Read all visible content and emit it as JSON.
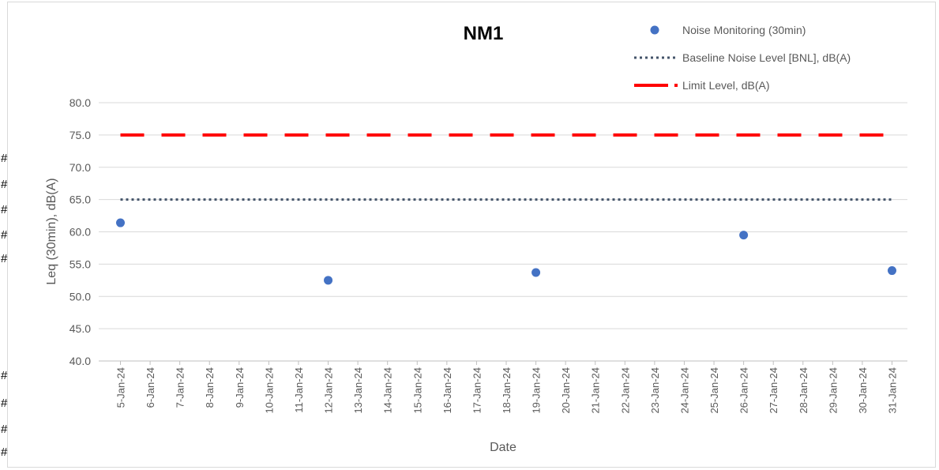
{
  "row_markers": [
    "#",
    "#",
    "#",
    "#",
    "#",
    "#",
    "#",
    "#",
    "#"
  ],
  "chart_data": {
    "type": "scatter",
    "title": "NM1",
    "xlabel": "Date",
    "ylabel": "Leq (30min), dB(A)",
    "ylim": [
      40.0,
      80.0
    ],
    "ytick_labels": [
      "40.0",
      "45.0",
      "50.0",
      "55.0",
      "60.0",
      "65.0",
      "70.0",
      "75.0",
      "80.0"
    ],
    "categories": [
      "5-Jan-24",
      "6-Jan-24",
      "7-Jan-24",
      "8-Jan-24",
      "9-Jan-24",
      "10-Jan-24",
      "11-Jan-24",
      "12-Jan-24",
      "13-Jan-24",
      "14-Jan-24",
      "15-Jan-24",
      "16-Jan-24",
      "17-Jan-24",
      "18-Jan-24",
      "19-Jan-24",
      "20-Jan-24",
      "21-Jan-24",
      "22-Jan-24",
      "23-Jan-24",
      "24-Jan-24",
      "25-Jan-24",
      "26-Jan-24",
      "27-Jan-24",
      "28-Jan-24",
      "29-Jan-24",
      "30-Jan-24",
      "31-Jan-24"
    ],
    "grid": true,
    "legend_position": "top-right",
    "series": [
      {
        "name": "Noise Monitoring (30min)",
        "kind": "marker",
        "color": "#4472c4",
        "points": [
          {
            "x": "5-Jan-24",
            "y": 61.4
          },
          {
            "x": "12-Jan-24",
            "y": 52.5
          },
          {
            "x": "19-Jan-24",
            "y": 53.7
          },
          {
            "x": "26-Jan-24",
            "y": 59.5
          },
          {
            "x": "31-Jan-24",
            "y": 54.0
          }
        ]
      },
      {
        "name": "Baseline Noise Level [BNL], dB(A)",
        "kind": "dotted-line",
        "color": "#44546a",
        "value": 65.0
      },
      {
        "name": "Limit Level, dB(A)",
        "kind": "dashed-line",
        "color": "#ff0000",
        "value": 75.0
      }
    ]
  }
}
